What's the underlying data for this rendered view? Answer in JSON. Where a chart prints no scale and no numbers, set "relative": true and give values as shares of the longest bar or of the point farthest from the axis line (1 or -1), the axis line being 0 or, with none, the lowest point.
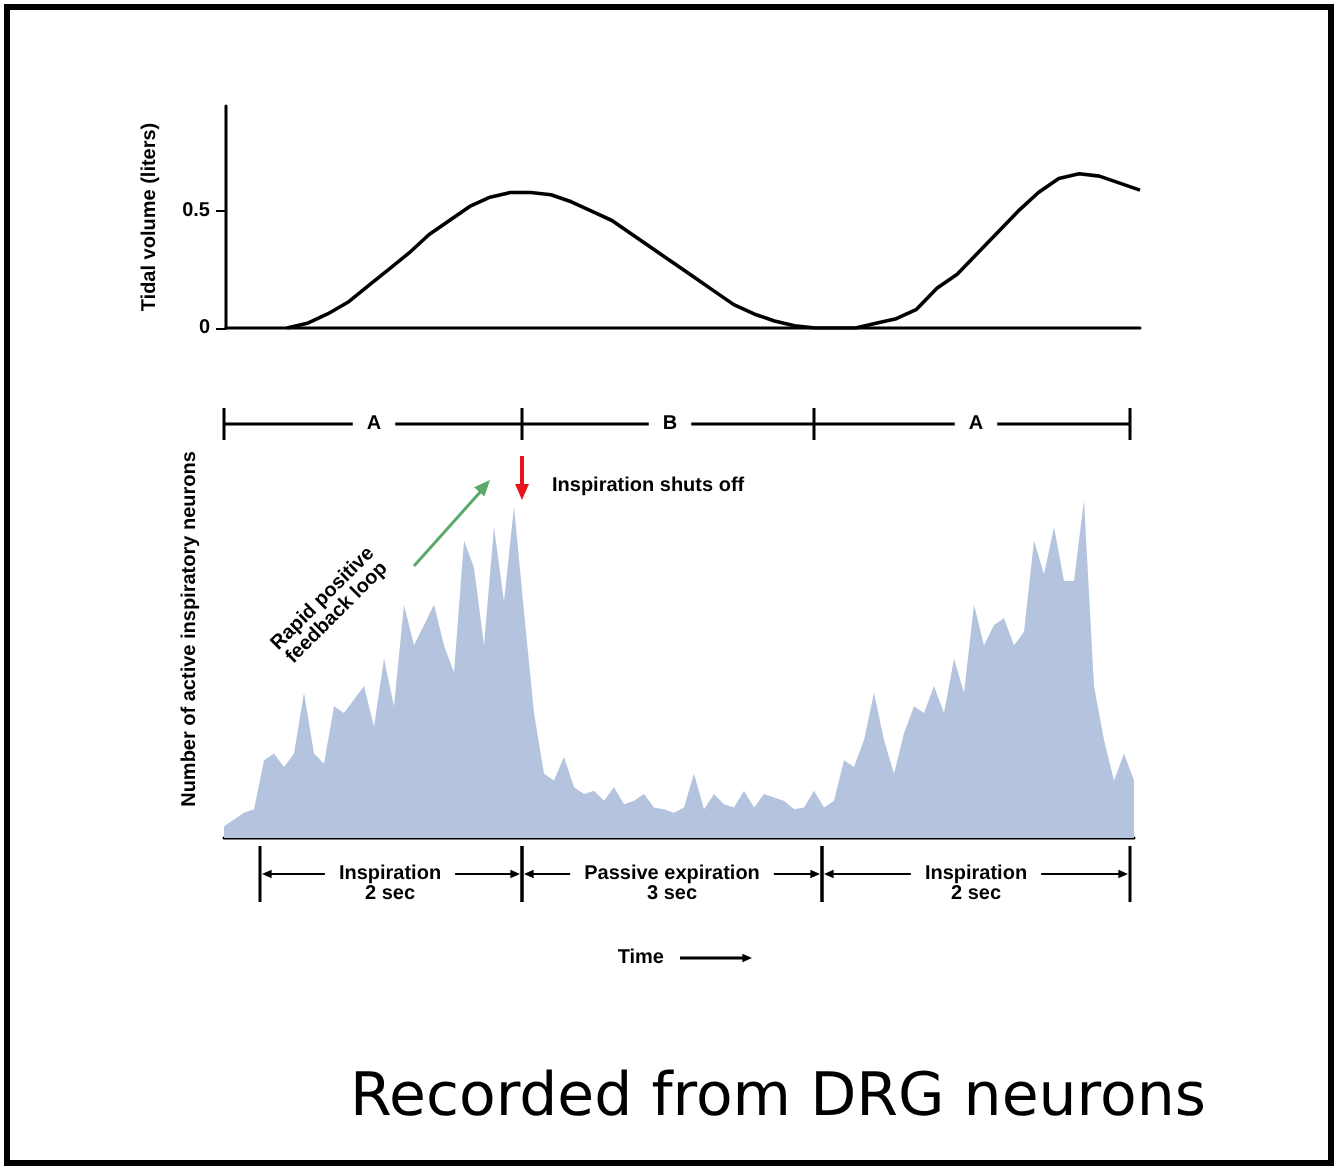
{
  "chart_data": [
    {
      "type": "line",
      "ylabel": "Tidal volume (liters)",
      "ylim": [
        0,
        0.95
      ],
      "yticks": [
        0,
        0.5
      ],
      "tick_labels": "y",
      "color": "#000000",
      "categories": [
        null,
        null,
        null,
        null,
        null,
        null,
        null,
        null,
        null,
        null,
        null,
        null,
        null,
        null,
        null,
        null,
        null,
        null,
        null,
        null,
        null,
        null,
        null,
        null,
        null,
        null,
        null,
        null,
        null,
        null,
        null,
        null,
        null,
        null,
        null,
        null,
        null,
        null,
        null,
        null,
        null,
        null,
        null,
        null,
        null,
        null
      ],
      "values": [
        null,
        null,
        null,
        0,
        0.02,
        0.06,
        0.11,
        0.18,
        0.25,
        0.32,
        0.4,
        0.46,
        0.52,
        0.56,
        0.58,
        0.58,
        0.57,
        0.54,
        0.5,
        0.46,
        0.4,
        0.34,
        0.28,
        0.22,
        0.16,
        0.1,
        0.06,
        0.03,
        0.01,
        0,
        0,
        0,
        0.02,
        0.04,
        0.08,
        0.17,
        0.23,
        0.32,
        0.41,
        0.5,
        0.58,
        0.64,
        0.66,
        0.65,
        0.62,
        0.59
      ]
    },
    {
      "type": "area",
      "relative": true,
      "tick_labels": false,
      "color": "#b4c3de",
      "xlabel": "Time",
      "ylabel": "Number of active inspiratory neurons",
      "categories": [
        null,
        null,
        null,
        null,
        null,
        null,
        null,
        null,
        null,
        null,
        null,
        null,
        null,
        null,
        null,
        null,
        null,
        null,
        null,
        null,
        null,
        null,
        null,
        null,
        null,
        null,
        null,
        null,
        null,
        null,
        null,
        null,
        null,
        null,
        null,
        null,
        null,
        null,
        null,
        null,
        null,
        null,
        null,
        null,
        null,
        null,
        null,
        null,
        null,
        null,
        null,
        null,
        null,
        null,
        null,
        null,
        null,
        null,
        null,
        null,
        null,
        null,
        null,
        null,
        null,
        null,
        null,
        null,
        null,
        null,
        null,
        null,
        null,
        null,
        null,
        null,
        null,
        null,
        null,
        null,
        null,
        null,
        null,
        null,
        null,
        null,
        null,
        null,
        null,
        null,
        null,
        null
      ],
      "values": [
        0.035,
        0.055,
        0.075,
        0.085,
        0.23,
        0.25,
        0.21,
        0.25,
        0.43,
        0.25,
        0.22,
        0.39,
        0.37,
        0.41,
        0.45,
        0.33,
        0.53,
        0.39,
        0.69,
        0.57,
        0.63,
        0.69,
        0.57,
        0.49,
        0.88,
        0.8,
        0.57,
        0.92,
        0.7,
        0.98,
        0.67,
        0.37,
        0.19,
        0.17,
        0.24,
        0.15,
        0.13,
        0.14,
        0.11,
        0.15,
        0.1,
        0.11,
        0.13,
        0.09,
        0.085,
        0.075,
        0.09,
        0.19,
        0.085,
        0.13,
        0.1,
        0.09,
        0.14,
        0.09,
        0.13,
        0.12,
        0.11,
        0.085,
        0.09,
        0.14,
        0.09,
        0.11,
        0.23,
        0.21,
        0.29,
        0.43,
        0.29,
        0.19,
        0.31,
        0.39,
        0.37,
        0.45,
        0.37,
        0.53,
        0.43,
        0.69,
        0.57,
        0.63,
        0.65,
        0.57,
        0.61,
        0.88,
        0.78,
        0.92,
        0.76,
        0.76,
        1,
        0.45,
        0.29,
        0.17,
        0.25,
        0.17
      ],
      "annotations": [
        "A",
        "B",
        "A",
        "Rapid positive\nfeedback loop",
        "Inspiration shuts off",
        "Inspiration\n2 sec",
        "Passive expiration\n3 sec",
        "Inspiration\n2 sec",
        "Recorded from DRG neurons"
      ]
    }
  ]
}
